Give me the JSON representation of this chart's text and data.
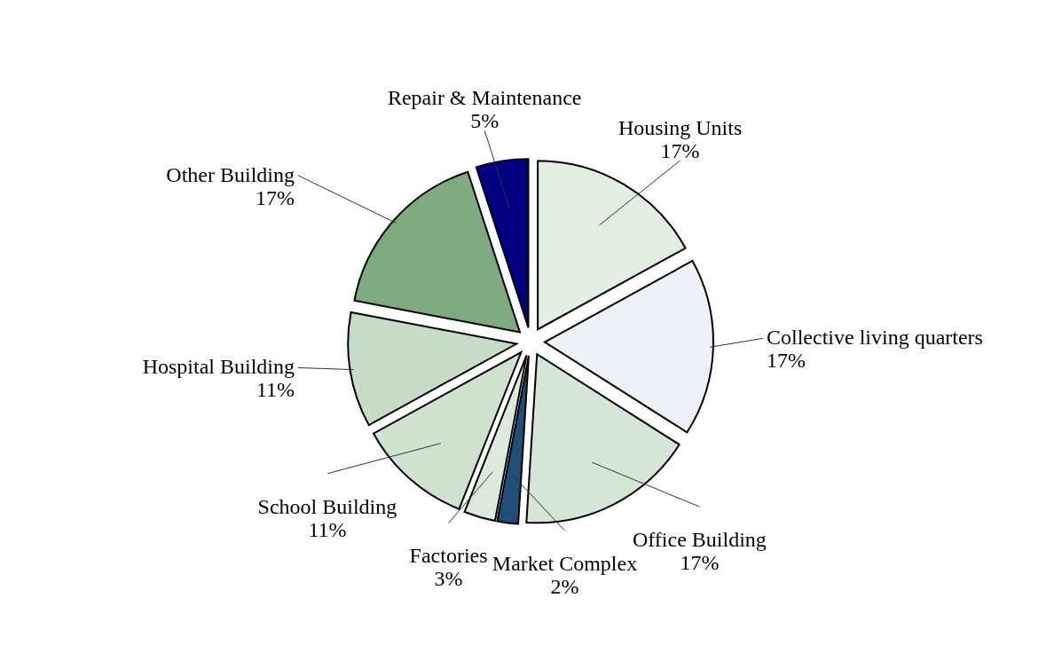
{
  "chart_data": {
    "type": "pie",
    "categories": [
      "Housing Units",
      "Collective living quarters",
      "Office Building",
      "Market Complex",
      "Factories",
      "School Building",
      "Hospital Building",
      "Other Building",
      "Repair & Maintenance"
    ],
    "values": [
      17,
      17,
      17,
      2,
      3,
      11,
      11,
      17,
      5
    ],
    "value_labels": [
      "17%",
      "17%",
      "17%",
      "2%",
      "3%",
      "11%",
      "11%",
      "17%",
      "5%"
    ],
    "colors": [
      "#e3eee3",
      "#eef2f8",
      "#d6e6d6",
      "#1f4e79",
      "#dce9dc",
      "#cfe2cf",
      "#c6dcc6",
      "#7fa97f",
      "#000080"
    ]
  }
}
